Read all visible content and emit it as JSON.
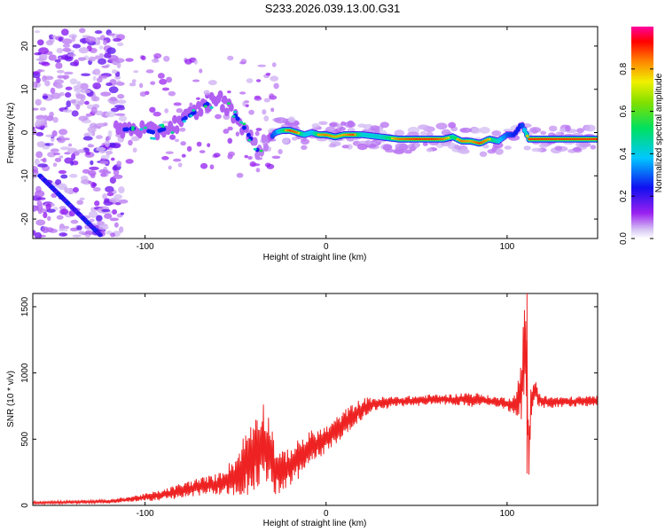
{
  "title": "S233.2026.039.13.00.G31",
  "chart_data": [
    {
      "type": "heatmap",
      "title": "S233.2026.039.13.00.G31",
      "xlabel": "Height of straight line (km)",
      "ylabel": "Frequency (Hz)",
      "xlim": [
        -162,
        150
      ],
      "ylim": [
        -24.5,
        24.5
      ],
      "xticks": [
        -100,
        0,
        100
      ],
      "xtick_labels": [
        "-100",
        "0",
        "100"
      ],
      "yticks": [
        -20,
        -10,
        0,
        10,
        20
      ],
      "ytick_labels": [
        "-20",
        "-10",
        "0",
        "10",
        "20"
      ],
      "ridge": {
        "x": [
          -115,
          -105,
          -95,
          -85,
          -75,
          -68,
          -60,
          -52,
          -45,
          -38,
          -32,
          -28,
          -24,
          -20,
          -16,
          -12,
          -8,
          -4,
          0,
          5,
          10,
          15,
          20,
          30,
          40,
          50,
          60,
          65,
          70,
          75,
          80,
          85,
          90,
          95,
          100,
          104,
          108,
          112,
          120,
          130,
          140,
          148
        ],
        "freq": [
          0.5,
          1.0,
          0.0,
          1.5,
          4.0,
          6.0,
          8.0,
          5.0,
          1.0,
          -4.0,
          -2.0,
          0.0,
          0.5,
          0.5,
          0.0,
          -0.5,
          0.0,
          -0.5,
          -0.5,
          -1.0,
          -0.5,
          -0.5,
          -0.5,
          -1.0,
          -1.5,
          -1.5,
          -1.5,
          -1.5,
          -1.0,
          -2.0,
          -2.0,
          -2.5,
          -1.5,
          -2.0,
          -0.5,
          -0.5,
          2.0,
          -1.5,
          -1.5,
          -1.5,
          -1.5,
          -1.5
        ],
        "amplitude": [
          0.3,
          0.3,
          0.3,
          0.3,
          0.3,
          0.3,
          0.3,
          0.3,
          0.3,
          0.25,
          0.25,
          0.45,
          0.7,
          0.9,
          0.85,
          0.6,
          0.55,
          0.8,
          0.85,
          0.8,
          0.8,
          0.9,
          0.6,
          0.6,
          0.85,
          0.9,
          0.9,
          0.85,
          0.7,
          0.85,
          0.8,
          0.9,
          0.8,
          0.6,
          0.4,
          0.3,
          0.3,
          0.9,
          0.9,
          0.9,
          0.9,
          0.9
        ]
      },
      "colorbar": {
        "label": "Normalized spectral amplitude",
        "range": [
          0.0,
          1.0
        ],
        "ticks": [
          0.0,
          0.2,
          0.4,
          0.6,
          0.8
        ],
        "tick_labels": [
          "0.0",
          "0.2",
          "0.4",
          "0.6",
          "0.8"
        ]
      }
    },
    {
      "type": "line",
      "xlabel": "Height of straight line (km)",
      "ylabel": "SNR (10 * v/v)",
      "xlim": [
        -162,
        150
      ],
      "ylim": [
        0,
        1600
      ],
      "xticks": [
        -100,
        0,
        100
      ],
      "xtick_labels": [
        "-100",
        "0",
        "100"
      ],
      "yticks": [
        0,
        500,
        1000,
        1500
      ],
      "ytick_labels": [
        "0",
        "500",
        "1000",
        "1500"
      ],
      "color": "#ee2222",
      "series": [
        {
          "name": "SNR",
          "x": [
            -162,
            -140,
            -120,
            -110,
            -100,
            -90,
            -80,
            -70,
            -60,
            -50,
            -45,
            -40,
            -35,
            -30,
            -28,
            -25,
            -20,
            -15,
            -10,
            -5,
            0,
            5,
            10,
            15,
            20,
            25,
            30,
            40,
            50,
            60,
            70,
            80,
            90,
            95,
            100,
            104,
            106,
            108,
            109,
            110,
            111,
            112,
            113,
            115,
            118,
            120,
            130,
            140,
            150
          ],
          "values": [
            20,
            25,
            30,
            45,
            60,
            80,
            110,
            140,
            160,
            220,
            300,
            400,
            500,
            380,
            260,
            250,
            300,
            350,
            410,
            460,
            500,
            560,
            620,
            680,
            730,
            760,
            770,
            785,
            790,
            800,
            800,
            800,
            790,
            780,
            770,
            760,
            800,
            900,
            1100,
            1200,
            1000,
            350,
            700,
            880,
            800,
            780,
            780,
            785,
            790
          ],
          "spread": [
            10,
            12,
            15,
            20,
            30,
            40,
            60,
            70,
            80,
            150,
            250,
            300,
            300,
            250,
            200,
            150,
            150,
            150,
            150,
            120,
            100,
            100,
            100,
            90,
            80,
            60,
            50,
            40,
            40,
            40,
            40,
            60,
            40,
            40,
            50,
            80,
            150,
            250,
            300,
            350,
            300,
            150,
            200,
            100,
            60,
            50,
            40,
            40,
            40
          ]
        }
      ]
    }
  ]
}
